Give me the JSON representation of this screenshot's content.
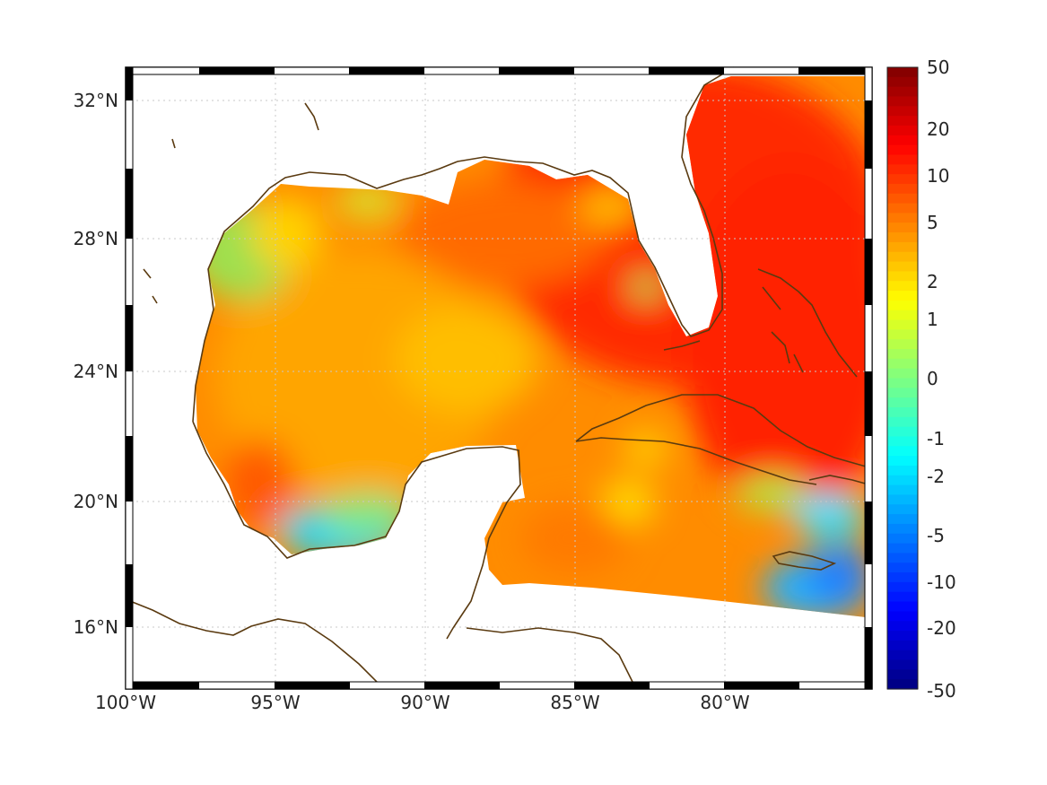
{
  "map": {
    "x_ticks": [
      "100°W",
      "95°W",
      "90°W",
      "85°W",
      "80°W"
    ],
    "y_ticks": [
      "32°N",
      "28°N",
      "24°N",
      "20°N",
      "16°N"
    ],
    "lon_range": [
      -100,
      -75
    ],
    "lat_range": [
      14.3,
      33
    ],
    "grid": "dotted",
    "frame": "black-white alternating border",
    "coastline_color": "#5a3a10"
  },
  "colorbar": {
    "tick_labels": [
      "50",
      "20",
      "10",
      "5",
      "2",
      "1",
      "0",
      "-1",
      "-2",
      "-5",
      "-10",
      "-20",
      "-50"
    ],
    "colormap": "jet",
    "placement": "right"
  }
}
